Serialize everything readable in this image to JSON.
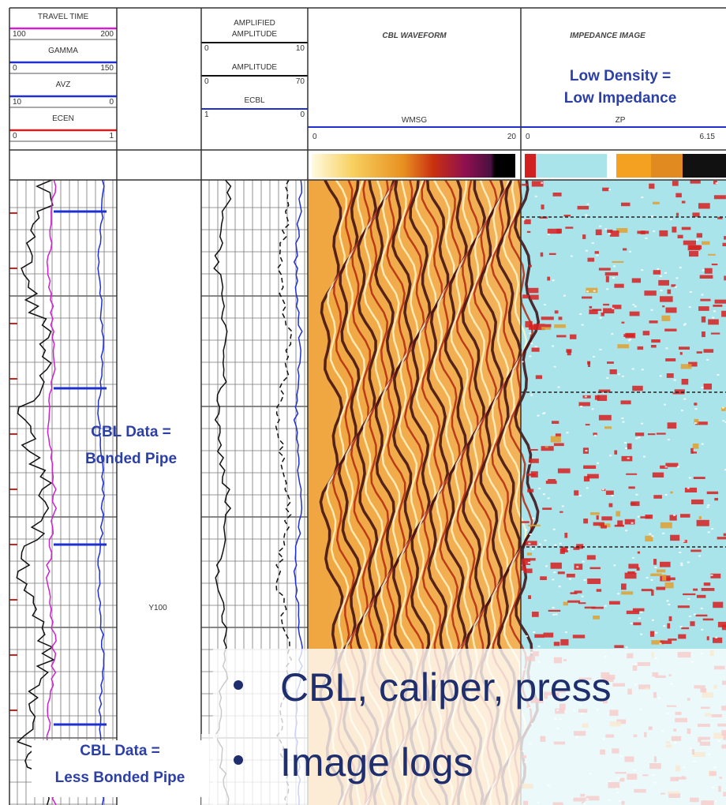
{
  "tracks": [
    {
      "entries": [
        {
          "title": [
            "TRAVEL TIME"
          ],
          "left": "100",
          "right": "200"
        },
        {
          "title": [
            "GAMMA"
          ],
          "left": "0",
          "right": "150"
        },
        {
          "title": [
            "AVZ"
          ],
          "left": "10",
          "right": "0"
        },
        {
          "title": [
            "ECEN"
          ],
          "left": "0",
          "right": "1"
        }
      ]
    },
    {
      "depth_label": "Y100"
    },
    {
      "entries": [
        {
          "title": [
            "AMPLIFIED",
            "AMPLITUDE"
          ],
          "left": "0",
          "right": "10"
        },
        {
          "title": [
            "AMPLITUDE"
          ],
          "left": "0",
          "right": "70"
        },
        {
          "title": [
            "ECBL"
          ],
          "left": "1",
          "right": "0"
        }
      ]
    },
    {
      "title": "CBL WAVEFORM",
      "mnemonic": "WMSG",
      "left": "0",
      "right": "20"
    },
    {
      "title": "IMPEDANCE IMAGE",
      "note": [
        "Low Density =",
        "Low Impedance"
      ],
      "mnemonic": "ZP",
      "left": "0",
      "right": "6.15"
    }
  ],
  "annotations": [
    {
      "lines": [
        "CBL Data =",
        "Bonded Pipe"
      ]
    },
    {
      "lines": [
        "CBL Data =",
        "Less Bonded Pipe"
      ]
    }
  ],
  "bullets": [
    "CBL, caliper, press",
    "Image logs"
  ]
}
